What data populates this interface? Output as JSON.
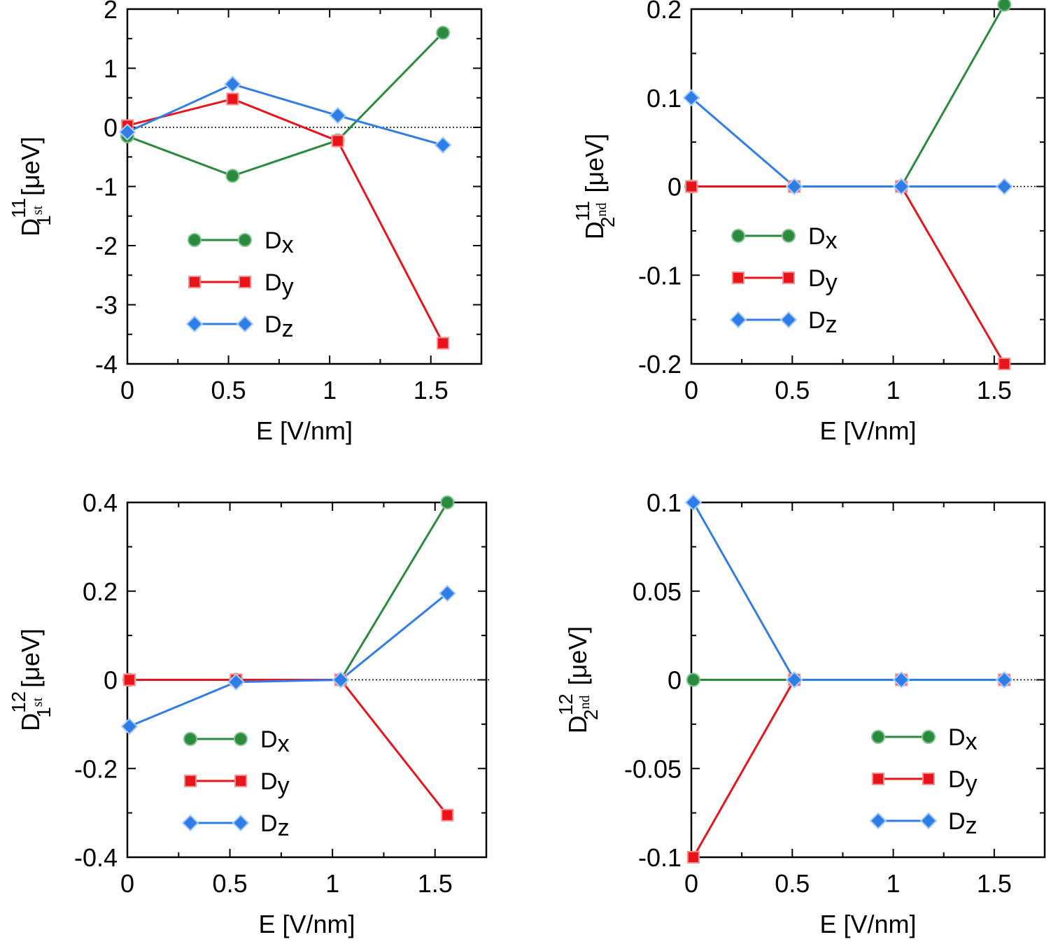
{
  "colors": {
    "Dx": "#2a8a3e",
    "Dy": "#e8141c",
    "Dz": "#2f7ee8"
  },
  "chart_data": [
    {
      "type": "line",
      "panel": "top-left",
      "xlabel": "E  [V/nm]",
      "ylabel": {
        "base": "D",
        "sup": "11",
        "sub": "1",
        "subsup": "st",
        "unit": "[μeV]"
      },
      "xlim": [
        0,
        1.75
      ],
      "ylim": [
        -4,
        2
      ],
      "xticks": [
        0,
        0.5,
        1,
        1.5
      ],
      "xticklabels": [
        "0",
        "0.5",
        "1",
        "1.5"
      ],
      "yticks": [
        -4,
        -3,
        -2,
        -1,
        0,
        1,
        2
      ],
      "yticklabels": [
        "-4",
        "-3",
        "-2",
        "-1",
        "0",
        "1",
        "2"
      ],
      "x": [
        0,
        0.52,
        1.04,
        1.56
      ],
      "series": [
        {
          "name": "Dx",
          "values": [
            -0.15,
            -0.82,
            -0.22,
            1.6
          ]
        },
        {
          "name": "Dy",
          "values": [
            0.03,
            0.48,
            -0.23,
            -3.65
          ]
        },
        {
          "name": "Dz",
          "values": [
            -0.08,
            0.73,
            0.2,
            -0.3
          ]
        }
      ],
      "legend": "lower-left"
    },
    {
      "type": "line",
      "panel": "top-right",
      "xlabel": "E  [V/nm]",
      "ylabel": {
        "base": "D",
        "sup": "11",
        "sub": "2",
        "subsup": "nd",
        "unit": "[μeV]"
      },
      "xlim": [
        0,
        1.75
      ],
      "ylim": [
        -0.2,
        0.2
      ],
      "xticks": [
        0,
        0.5,
        1,
        1.5
      ],
      "xticklabels": [
        "0",
        "0.5",
        "1",
        "1.5"
      ],
      "yticks": [
        -0.2,
        -0.1,
        0,
        0.1,
        0.2
      ],
      "yticklabels": [
        "-0.2",
        "-0.1",
        "0",
        "0.1",
        "0.2"
      ],
      "x": [
        0,
        0.51,
        1.04,
        1.55
      ],
      "series": [
        {
          "name": "Dx",
          "values": [
            0,
            0,
            0,
            0.205
          ]
        },
        {
          "name": "Dy",
          "values": [
            0,
            0,
            0,
            -0.2
          ]
        },
        {
          "name": "Dz",
          "values": [
            0.1,
            0,
            0,
            0
          ]
        }
      ],
      "legend": "lower-left"
    },
    {
      "type": "line",
      "panel": "bottom-left",
      "xlabel": "E  [V/nm]",
      "ylabel": {
        "base": "D",
        "sup": "12",
        "sub": "1",
        "subsup": "st",
        "unit": "[μeV]"
      },
      "xlim": [
        0,
        1.75
      ],
      "ylim": [
        -0.4,
        0.4
      ],
      "xticks": [
        0,
        0.5,
        1,
        1.5
      ],
      "xticklabels": [
        "0",
        "0.5",
        "1",
        "1.5"
      ],
      "yticks": [
        -0.4,
        -0.2,
        0,
        0.2,
        0.4
      ],
      "yticklabels": [
        "-0.4",
        "-0.2",
        "0",
        "0.2",
        "0.4"
      ],
      "x": [
        0.01,
        0.53,
        1.04,
        1.56
      ],
      "series": [
        {
          "name": "Dx",
          "values": [
            0,
            0,
            0,
            0.4
          ]
        },
        {
          "name": "Dy",
          "values": [
            0,
            0,
            0,
            -0.305
          ]
        },
        {
          "name": "Dz",
          "values": [
            -0.105,
            -0.005,
            0,
            0.195
          ]
        }
      ],
      "legend": "lower-left"
    },
    {
      "type": "line",
      "panel": "bottom-right",
      "xlabel": "E  [V/nm]",
      "ylabel": {
        "base": "D",
        "sup": "12",
        "sub": "2",
        "subsup": "nd",
        "unit": "[μeV]"
      },
      "xlim": [
        0,
        1.75
      ],
      "ylim": [
        -0.1,
        0.1
      ],
      "xticks": [
        0,
        0.5,
        1,
        1.5
      ],
      "xticklabels": [
        "0",
        "0.5",
        "1",
        "1.5"
      ],
      "yticks": [
        -0.1,
        -0.05,
        0,
        0.05,
        0.1
      ],
      "yticklabels": [
        "-0.1",
        "-0.05",
        "0",
        "0.05",
        "0.1"
      ],
      "x": [
        0.01,
        0.51,
        1.04,
        1.55
      ],
      "series": [
        {
          "name": "Dx",
          "values": [
            0,
            0,
            0,
            0
          ]
        },
        {
          "name": "Dy",
          "values": [
            -0.1,
            0,
            0,
            0
          ]
        },
        {
          "name": "Dz",
          "values": [
            0.1,
            0,
            0,
            0
          ]
        }
      ],
      "legend": "lower-right"
    }
  ]
}
